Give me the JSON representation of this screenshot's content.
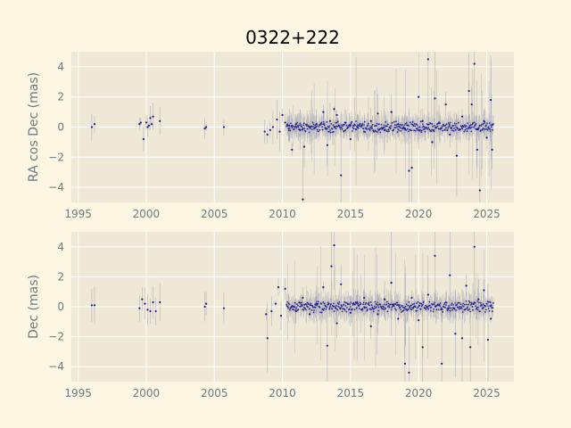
{
  "title": "0322+222",
  "colors": {
    "background": "#fdf6e3",
    "axes": "#efe8d6",
    "grid": "#ffffff",
    "points": "#1a1a8c",
    "errorbar": "#8a8fa8",
    "text": "#6b7a80"
  },
  "chart_data": [
    {
      "type": "scatter",
      "ylabel": "RA cos Dec (mas)",
      "xlim": [
        1994.5,
        2027
      ],
      "ylim": [
        -5,
        5
      ],
      "xticks": [
        1995,
        2000,
        2005,
        2010,
        2015,
        2020,
        2025
      ],
      "yticks": [
        -4,
        -2,
        0,
        2,
        4
      ],
      "grid": true,
      "points": [
        [
          1996.0,
          0.0
        ],
        [
          1996.2,
          0.2
        ],
        [
          1999.5,
          0.2
        ],
        [
          1999.6,
          0.3
        ],
        [
          1999.8,
          -0.8
        ],
        [
          2000.0,
          0.3
        ],
        [
          2000.1,
          0.0
        ],
        [
          2000.2,
          0.1
        ],
        [
          2000.3,
          0.6
        ],
        [
          2000.4,
          0.2
        ],
        [
          2000.5,
          0.7
        ],
        [
          2001.0,
          0.4
        ],
        [
          2004.3,
          -0.1
        ],
        [
          2004.4,
          0.0
        ],
        [
          2005.7,
          0.0
        ],
        [
          2008.7,
          -0.3
        ],
        [
          2008.9,
          -0.5
        ],
        [
          2009.1,
          -0.2
        ],
        [
          2009.3,
          0.0
        ],
        [
          2009.6,
          0.5
        ],
        [
          2009.8,
          -0.3
        ],
        [
          2010.0,
          0.8
        ],
        [
          2010.2,
          0.3
        ],
        [
          2010.5,
          0.1
        ],
        [
          2010.7,
          -1.5
        ],
        [
          2011.0,
          0.2
        ],
        [
          2011.3,
          -0.2
        ],
        [
          2011.5,
          -4.8
        ],
        [
          2011.6,
          -1.3
        ],
        [
          2012.0,
          0.0
        ],
        [
          2012.5,
          0.2
        ],
        [
          2013.0,
          1.0
        ],
        [
          2013.3,
          -1.2
        ],
        [
          2013.5,
          0.4
        ],
        [
          2013.8,
          1.2
        ],
        [
          2014.0,
          0.8
        ],
        [
          2014.3,
          -3.2
        ],
        [
          2014.6,
          0.3
        ],
        [
          2015.0,
          -0.8
        ],
        [
          2015.5,
          0.0
        ],
        [
          2016.0,
          -0.3
        ],
        [
          2016.5,
          0.4
        ],
        [
          2017.0,
          0.9
        ],
        [
          2017.5,
          -0.2
        ],
        [
          2018.0,
          1.0
        ],
        [
          2018.5,
          0.2
        ],
        [
          2019.0,
          -0.1
        ],
        [
          2019.3,
          -2.9
        ],
        [
          2019.5,
          -2.7
        ],
        [
          2020.0,
          2.0
        ],
        [
          2020.3,
          0.4
        ],
        [
          2020.7,
          4.5
        ],
        [
          2021.0,
          -1.0
        ],
        [
          2021.2,
          1.9
        ],
        [
          2021.5,
          0.3
        ],
        [
          2022.0,
          1.5
        ],
        [
          2022.3,
          -0.5
        ],
        [
          2022.8,
          -1.9
        ],
        [
          2023.2,
          0.7
        ],
        [
          2023.7,
          2.4
        ],
        [
          2023.9,
          1.5
        ],
        [
          2024.1,
          4.2
        ],
        [
          2024.3,
          -1.5
        ],
        [
          2024.5,
          -4.2
        ],
        [
          2024.8,
          0.4
        ],
        [
          2025.0,
          -0.7
        ],
        [
          2025.3,
          1.8
        ],
        [
          2025.4,
          -1.5
        ]
      ]
    },
    {
      "type": "scatter",
      "ylabel": "Dec (mas)",
      "xlim": [
        1994.5,
        2027
      ],
      "ylim": [
        -5,
        5
      ],
      "xticks": [
        1995,
        2000,
        2005,
        2010,
        2015,
        2020,
        2025
      ],
      "yticks": [
        -4,
        -2,
        0,
        2,
        4
      ],
      "grid": true,
      "points": [
        [
          1996.0,
          0.1
        ],
        [
          1996.2,
          0.1
        ],
        [
          1999.5,
          -0.1
        ],
        [
          1999.7,
          0.5
        ],
        [
          1999.9,
          0.2
        ],
        [
          2000.1,
          -0.2
        ],
        [
          2000.3,
          -0.3
        ],
        [
          2000.5,
          0.3
        ],
        [
          2000.7,
          -0.3
        ],
        [
          2001.0,
          0.3
        ],
        [
          2004.3,
          0.0
        ],
        [
          2004.4,
          0.2
        ],
        [
          2005.7,
          -0.1
        ],
        [
          2008.8,
          -0.5
        ],
        [
          2008.9,
          -2.1
        ],
        [
          2009.2,
          -0.3
        ],
        [
          2009.5,
          0.2
        ],
        [
          2009.7,
          1.3
        ],
        [
          2009.9,
          -0.6
        ],
        [
          2010.2,
          1.2
        ],
        [
          2011.0,
          -0.3
        ],
        [
          2011.5,
          0.6
        ],
        [
          2012.0,
          -0.5
        ],
        [
          2012.5,
          0.2
        ],
        [
          2013.0,
          1.3
        ],
        [
          2013.3,
          -2.6
        ],
        [
          2013.6,
          2.7
        ],
        [
          2013.8,
          4.1
        ],
        [
          2014.0,
          -1.1
        ],
        [
          2014.3,
          1.5
        ],
        [
          2015.0,
          -0.4
        ],
        [
          2015.5,
          0.3
        ],
        [
          2016.0,
          0.6
        ],
        [
          2016.5,
          -1.3
        ],
        [
          2017.0,
          -0.5
        ],
        [
          2017.5,
          0.5
        ],
        [
          2018.0,
          1.6
        ],
        [
          2018.5,
          -0.8
        ],
        [
          2019.0,
          -3.8
        ],
        [
          2019.3,
          -4.4
        ],
        [
          2019.5,
          0.6
        ],
        [
          2020.0,
          -0.9
        ],
        [
          2020.3,
          -2.7
        ],
        [
          2020.7,
          0.8
        ],
        [
          2021.2,
          3.4
        ],
        [
          2021.7,
          -3.8
        ],
        [
          2022.3,
          2.1
        ],
        [
          2022.7,
          -1.8
        ],
        [
          2023.2,
          -2.1
        ],
        [
          2023.5,
          1.4
        ],
        [
          2023.8,
          -2.7
        ],
        [
          2024.1,
          4.0
        ],
        [
          2024.4,
          0.5
        ],
        [
          2024.8,
          1.1
        ],
        [
          2025.1,
          -2.2
        ],
        [
          2025.3,
          -0.8
        ]
      ]
    }
  ]
}
